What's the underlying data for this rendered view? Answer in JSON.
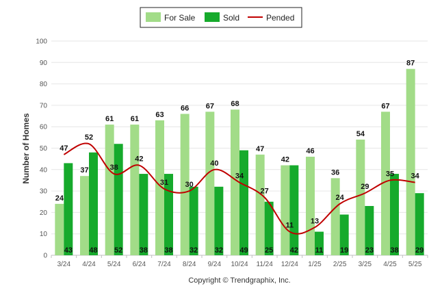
{
  "chart_data": {
    "type": "bar",
    "categories": [
      "3/24",
      "4/24",
      "5/24",
      "6/24",
      "7/24",
      "8/24",
      "9/24",
      "10/24",
      "11/24",
      "12/24",
      "1/25",
      "2/25",
      "3/25",
      "4/25",
      "5/25"
    ],
    "series": [
      {
        "name": "For Sale",
        "type": "bar",
        "color": "#a2dc88",
        "values": [
          24,
          37,
          61,
          61,
          63,
          66,
          67,
          68,
          47,
          42,
          46,
          36,
          54,
          67,
          87
        ]
      },
      {
        "name": "Sold",
        "type": "bar",
        "color": "#16aa2c",
        "values": [
          43,
          48,
          52,
          38,
          38,
          32,
          32,
          49,
          25,
          42,
          11,
          19,
          23,
          38,
          29
        ]
      },
      {
        "name": "Pended",
        "type": "line",
        "color": "#c00000",
        "values": [
          47,
          52,
          38,
          42,
          31,
          30,
          40,
          34,
          27,
          11,
          13,
          24,
          29,
          35,
          34
        ]
      }
    ],
    "ylabel": "Number of Homes",
    "ylim": [
      0,
      100
    ],
    "yticks": [
      0,
      10,
      20,
      30,
      40,
      50,
      60,
      70,
      80,
      90,
      100
    ],
    "grid": true,
    "legend_position": "top-center"
  },
  "footer": {
    "credit": "Copyright © Trendgraphix, Inc."
  }
}
